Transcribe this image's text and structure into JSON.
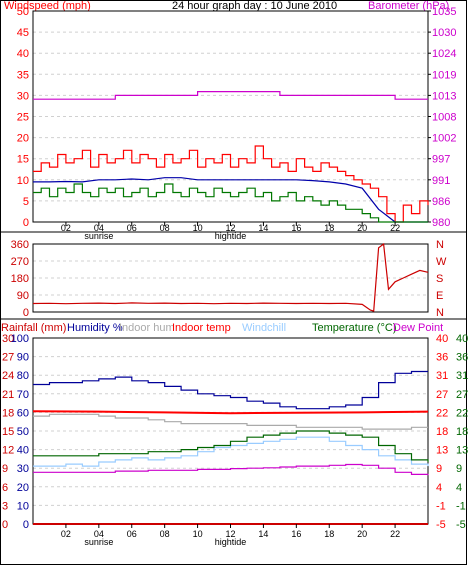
{
  "colors": {
    "wind": "#ff0000",
    "gust_avg": "#0000aa",
    "wind_low": "#007700",
    "baro": "#cc00cc",
    "dir": "#cc0000",
    "rain": "#cc0000",
    "humidity": "#000099",
    "indoor_hum": "#aaaaaa",
    "indoor_temp": "#ff0000",
    "windchill": "#99ccff",
    "temperature": "#006600",
    "dewpoint": "#cc00cc",
    "grid": "#d0d0d0",
    "frame": "#000000"
  },
  "chart_data": [
    {
      "type": "line",
      "title": "24 hour graph day : 10 June 2010",
      "left_axis_label": "Windspeed (mph)",
      "right_axis_label": "Barometer (hPa)",
      "left_ticks": [
        0,
        5,
        10,
        15,
        20,
        25,
        30,
        35,
        40,
        45,
        50
      ],
      "right_ticks": [
        "980",
        "986",
        "991",
        "997",
        "1002",
        "1008",
        "1013",
        "1019",
        "1024",
        "1030",
        "1035"
      ],
      "left_range": [
        0,
        50
      ],
      "right_range": [
        980,
        1035
      ],
      "x_range": [
        0,
        24
      ],
      "x_ticks": [
        "02",
        "04",
        "06",
        "08",
        "10",
        "12",
        "14",
        "16",
        "18",
        "20",
        "22"
      ],
      "x_markers": [
        {
          "label": "sunrise",
          "x": 4
        },
        {
          "label": "hightide",
          "x": 12
        }
      ],
      "series": [
        {
          "key": "gust",
          "color_key": "wind",
          "step": true,
          "x": [
            0,
            0.5,
            1,
            1.5,
            2,
            2.5,
            3,
            3.5,
            4,
            4.5,
            5,
            5.5,
            6,
            6.5,
            7,
            7.5,
            8,
            8.5,
            9,
            9.5,
            10,
            10.5,
            11,
            11.5,
            12,
            12.5,
            13,
            13.5,
            14,
            14.5,
            15,
            15.5,
            16,
            16.5,
            17,
            17.5,
            18,
            18.5,
            19,
            19.5,
            20,
            20.5,
            21,
            21.5,
            22,
            22.5,
            23,
            23.5,
            24
          ],
          "y": [
            12,
            14,
            13,
            16,
            14,
            15,
            17,
            13,
            16,
            14,
            15,
            17,
            14,
            16,
            15,
            13,
            16,
            14,
            15,
            17,
            13,
            15,
            14,
            16,
            13,
            15,
            14,
            18,
            15,
            13,
            14,
            12,
            15,
            13,
            12,
            14,
            13,
            12,
            11,
            10,
            9,
            8,
            6,
            2,
            0,
            4,
            2,
            5,
            4
          ]
        },
        {
          "key": "average",
          "color_key": "gust_avg",
          "step": false,
          "x": [
            0,
            1,
            2,
            3,
            4,
            5,
            6,
            7,
            8,
            9,
            10,
            11,
            12,
            13,
            14,
            15,
            16,
            17,
            18,
            19,
            20,
            21,
            22,
            23,
            24
          ],
          "y": [
            9.5,
            9.5,
            9.6,
            9.5,
            10,
            10,
            10.2,
            10,
            10.5,
            10.5,
            10,
            10,
            10,
            10,
            10,
            10,
            10,
            9.8,
            9.5,
            9,
            8,
            3,
            0,
            0,
            0
          ]
        },
        {
          "key": "lull",
          "color_key": "wind_low",
          "step": true,
          "x": [
            0,
            0.5,
            1,
            1.5,
            2,
            2.5,
            3,
            3.5,
            4,
            4.5,
            5,
            5.5,
            6,
            6.5,
            7,
            7.5,
            8,
            8.5,
            9,
            9.5,
            10,
            10.5,
            11,
            11.5,
            12,
            12.5,
            13,
            13.5,
            14,
            14.5,
            15,
            15.5,
            16,
            16.5,
            17,
            17.5,
            18,
            18.5,
            19,
            19.5,
            20,
            20.5,
            21,
            21.5,
            22,
            22.5,
            23,
            23.5,
            24
          ],
          "y": [
            7,
            8,
            6,
            8,
            7,
            9,
            7,
            6,
            8,
            7,
            8,
            6,
            7,
            8,
            6,
            7,
            9,
            7,
            6,
            8,
            7,
            6,
            8,
            7,
            6,
            7,
            8,
            6,
            7,
            5,
            6,
            7,
            5,
            6,
            5,
            4,
            5,
            4,
            3,
            3,
            2,
            1,
            0,
            0,
            0,
            0,
            0,
            0,
            0
          ]
        },
        {
          "key": "barometer",
          "color_key": "baro",
          "axis": "right",
          "step": true,
          "x": [
            0,
            1,
            2,
            3,
            4,
            5,
            6,
            7,
            8,
            9,
            10,
            11,
            12,
            13,
            14,
            15,
            16,
            17,
            18,
            19,
            20,
            21,
            22,
            23,
            24
          ],
          "y": [
            1012,
            1012,
            1012,
            1012,
            1012,
            1013,
            1013,
            1013,
            1013,
            1013,
            1014,
            1014,
            1014,
            1014,
            1014,
            1013,
            1013,
            1013,
            1013,
            1013,
            1013,
            1013,
            1012,
            1012,
            1012
          ]
        }
      ]
    },
    {
      "type": "line",
      "left_ticks": [
        "0",
        "90",
        "180",
        "270",
        "360"
      ],
      "right_ticks": [
        "N",
        "E",
        "S",
        "W",
        "N"
      ],
      "left_range": [
        0,
        360
      ],
      "x_range": [
        0,
        24
      ],
      "series": [
        {
          "key": "direction",
          "color_key": "dir",
          "step": false,
          "x": [
            0,
            1,
            2,
            3,
            4,
            5,
            6,
            7,
            8,
            9,
            10,
            11,
            12,
            13,
            14,
            15,
            16,
            17,
            18,
            19,
            20,
            20.5,
            20.7,
            21,
            21.3,
            21.6,
            22,
            22.5,
            23,
            23.5,
            24
          ],
          "y": [
            45,
            46,
            44,
            46,
            47,
            45,
            48,
            46,
            47,
            45,
            46,
            44,
            46,
            45,
            47,
            46,
            45,
            46,
            45,
            46,
            40,
            10,
            5,
            340,
            360,
            120,
            160,
            180,
            200,
            220,
            210
          ]
        }
      ]
    },
    {
      "type": "line",
      "legend": [
        "Rainfall (mm)",
        "Humidity %",
        "Indoor hum",
        "Indoor temp",
        "Windchill",
        "Temperature (°C)",
        "Dew Point"
      ],
      "left_ticks_outer": [
        "0",
        "3",
        "6",
        "9",
        "12",
        "15",
        "18",
        "21",
        "24",
        "27",
        "30"
      ],
      "left_ticks_inner": [
        "0",
        "10",
        "20",
        "30",
        "40",
        "50",
        "60",
        "70",
        "80",
        "90",
        "100"
      ],
      "right_ticks_inner": [
        "-5",
        "-1",
        "4",
        "9",
        "13",
        "18",
        "22",
        "27",
        "31",
        "36",
        "40"
      ],
      "right_ticks_outer": [
        "-5",
        "-1",
        "4",
        "9",
        "13",
        "18",
        "22",
        "27",
        "31",
        "36",
        "40"
      ],
      "humidity_range": [
        0,
        100
      ],
      "temp_range": [
        -5,
        40
      ],
      "x_range": [
        0,
        24
      ],
      "x_ticks": [
        "02",
        "04",
        "06",
        "08",
        "10",
        "12",
        "14",
        "16",
        "18",
        "20",
        "22"
      ],
      "x_markers": [
        {
          "label": "sunrise",
          "x": 4
        },
        {
          "label": "hightide",
          "x": 12
        }
      ],
      "series": [
        {
          "key": "humidity",
          "color_key": "humidity",
          "axis": "humidity",
          "step": true,
          "x": [
            0,
            1,
            2,
            3,
            4,
            5,
            6,
            7,
            8,
            9,
            10,
            11,
            12,
            13,
            14,
            15,
            16,
            17,
            18,
            19,
            20,
            21,
            22,
            23,
            24
          ],
          "y": [
            75,
            76,
            76,
            77,
            78,
            79,
            77,
            76,
            74,
            72,
            70,
            69,
            68,
            66,
            65,
            63,
            62,
            62,
            63,
            64,
            68,
            76,
            81,
            82,
            82
          ]
        },
        {
          "key": "indoor_hum",
          "color_key": "indoor_hum",
          "axis": "humidity",
          "step": true,
          "x": [
            0,
            1,
            2,
            3,
            4,
            5,
            6,
            7,
            8,
            9,
            10,
            11,
            12,
            13,
            14,
            15,
            16,
            17,
            18,
            19,
            20,
            21,
            22,
            23,
            24
          ],
          "y": [
            58,
            59,
            59,
            59,
            58,
            57,
            57,
            56,
            55,
            54,
            54,
            54,
            54,
            53,
            53,
            53,
            52,
            52,
            52,
            52,
            51,
            51,
            51,
            52,
            52
          ]
        },
        {
          "key": "indoor_temp",
          "color_key": "indoor_temp",
          "axis": "temp",
          "step": false,
          "x": [
            0,
            4,
            8,
            12,
            16,
            20,
            24
          ],
          "y": [
            22.3,
            22.2,
            22.0,
            21.8,
            21.9,
            22.0,
            22.2
          ]
        },
        {
          "key": "windchill",
          "color_key": "windchill",
          "axis": "temp",
          "step": true,
          "x": [
            0,
            1,
            2,
            3,
            4,
            5,
            6,
            7,
            8,
            9,
            10,
            11,
            12,
            13,
            14,
            15,
            16,
            17,
            18,
            19,
            20,
            21,
            22,
            23,
            24
          ],
          "y": [
            9,
            9,
            9.5,
            9,
            10,
            10.5,
            11,
            10.5,
            11,
            11.5,
            12.5,
            13.5,
            14,
            14.5,
            15,
            15.5,
            16,
            16,
            15,
            14,
            13,
            11.5,
            10.5,
            9.5,
            9
          ]
        },
        {
          "key": "temperature",
          "color_key": "temperature",
          "axis": "temp",
          "step": true,
          "x": [
            0,
            1,
            2,
            3,
            4,
            5,
            6,
            7,
            8,
            9,
            10,
            11,
            12,
            13,
            14,
            15,
            16,
            17,
            18,
            19,
            20,
            21,
            22,
            23,
            24
          ],
          "y": [
            11.5,
            11.5,
            11.5,
            11.5,
            12,
            12,
            12,
            12.5,
            12.5,
            13,
            13.5,
            14,
            15,
            16,
            16.5,
            17,
            17.5,
            17.5,
            17,
            16.5,
            16,
            14,
            12,
            10.5,
            10
          ]
        },
        {
          "key": "dewpoint",
          "color_key": "dewpoint",
          "axis": "temp",
          "step": true,
          "x": [
            0,
            1,
            2,
            3,
            4,
            5,
            6,
            7,
            8,
            9,
            10,
            11,
            12,
            13,
            14,
            15,
            16,
            17,
            18,
            19,
            20,
            21,
            22,
            23,
            24
          ],
          "y": [
            7.5,
            7.5,
            7.5,
            7.5,
            7.5,
            7.8,
            7.8,
            8,
            8,
            8,
            8.2,
            8.2,
            8.4,
            8.5,
            8.6,
            8.8,
            9,
            9,
            9.2,
            9.4,
            9.2,
            8.5,
            7.5,
            7,
            6.8
          ]
        },
        {
          "key": "rainfall",
          "color_key": "rain",
          "axis": "rain",
          "step": false,
          "x": [
            0,
            24
          ],
          "y": [
            0,
            0
          ]
        }
      ]
    }
  ]
}
